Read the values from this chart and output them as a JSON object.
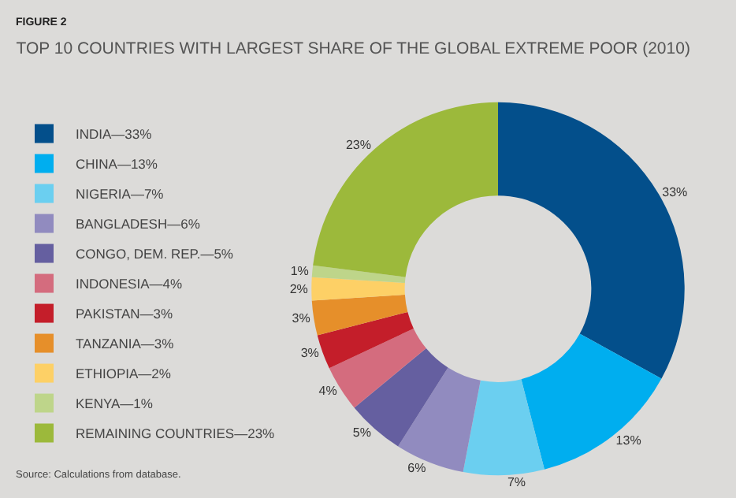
{
  "chart_data": {
    "type": "donut",
    "title": "TOP 10 COUNTRIES WITH LARGEST SHARE OF THE GLOBAL EXTREME POOR (2010)",
    "categories": [
      "INDIA—33%",
      "CHINA—13%",
      "NIGERIA—7%",
      "BANGLADESH—6%",
      "CONGO, DEM. REP.—5%",
      "INDONESIA—4%",
      "PAKISTAN—3%",
      "TANZANIA—3%",
      "ETHIOPIA—2%",
      "KENYA—1%",
      "REMAINING COUNTRIES—23%"
    ],
    "values": [
      33,
      13,
      7,
      6,
      5,
      4,
      3,
      3,
      2,
      1,
      23
    ],
    "value_labels": [
      "33%",
      "13%",
      "7%",
      "6%",
      "5%",
      "4%",
      "3%",
      "3%",
      "2%",
      "1%",
      "23%"
    ],
    "colors": [
      "#034f8b",
      "#00aeef",
      "#6bcff0",
      "#918bbf",
      "#655fa0",
      "#d46c7e",
      "#c41e2a",
      "#e68f2a",
      "#fdd066",
      "#bed58a",
      "#9cb93b"
    ],
    "legend": "left",
    "annotations": [
      "FIGURE 2",
      "Source: Calculations from database."
    ]
  }
}
